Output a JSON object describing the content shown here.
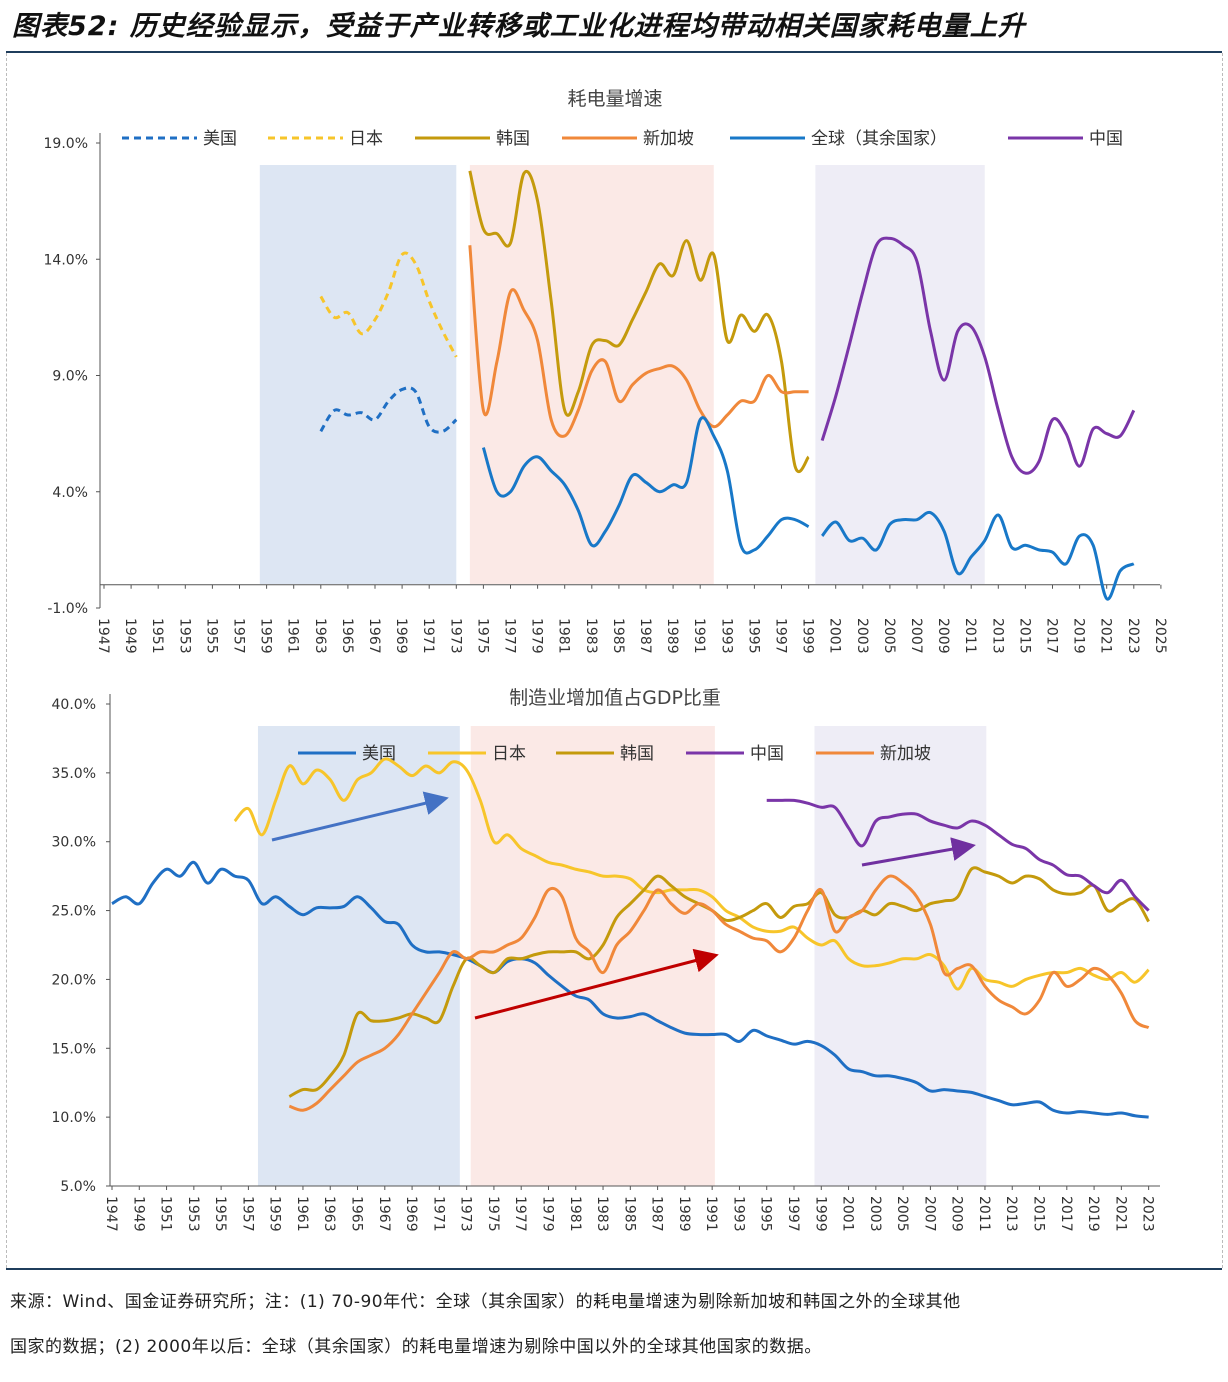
{
  "page_title": "图表52: 历史经验显示，受益于产业转移或工业化进程均带动相关国家耗电量上升",
  "footer": {
    "line1": "来源：Wind、国金证券研究所；注：(1) 70-90年代：全球（其余国家）的耗电量增速为剔除新加坡和韩国之外的全球其他",
    "line2": "国家的数据；(2) 2000年以后：全球（其余国家）的耗电量增速为剔除中国以外的全球其他国家的数据。"
  },
  "colors": {
    "us": "#1f6fc4",
    "japan": "#f7c52a",
    "korea": "#c49a0c",
    "singapore": "#f0883a",
    "global": "#1878c8",
    "china": "#7a35a8",
    "shade_blue": "#dde6f3",
    "shade_pink": "#fbe9e6",
    "shade_lav": "#eeedf6"
  },
  "chart_data": [
    {
      "type": "line",
      "title": "耗电量增速",
      "ylim": [
        -1,
        19
      ],
      "yticks": [
        "-1.0%",
        "4.0%",
        "9.0%",
        "14.0%",
        "19.0%"
      ],
      "ytick_values": [
        -1,
        4,
        9,
        14,
        19
      ],
      "xticks": [
        "1947",
        "1949",
        "1951",
        "1953",
        "1955",
        "1957",
        "1959",
        "1961",
        "1963",
        "1965",
        "1967",
        "1969",
        "1971",
        "1973",
        "1975",
        "1977",
        "1979",
        "1981",
        "1983",
        "1985",
        "1987",
        "1989",
        "1991",
        "1993",
        "1995",
        "1997",
        "1999",
        "2001",
        "2003",
        "2005",
        "2007",
        "2009",
        "2011",
        "2013",
        "2015",
        "2017",
        "2019",
        "2021",
        "2023",
        "2025"
      ],
      "legend_position": "top",
      "shaded_periods": [
        [
          1958.5,
          1973
        ],
        [
          1974,
          1992
        ],
        [
          1999.5,
          2012
        ]
      ],
      "series": [
        {
          "name": "美国",
          "color_key": "us",
          "dashed": true,
          "start": 1963,
          "values": [
            6.6,
            7.5,
            7.3,
            7.4,
            7.1,
            7.9,
            8.4,
            8.3,
            6.8,
            6.6,
            7.1
          ]
        },
        {
          "name": "日本",
          "color_key": "japan",
          "dashed": true,
          "start": 1963,
          "values": [
            12.4,
            11.5,
            11.7,
            10.8,
            11.4,
            12.6,
            14.2,
            13.8,
            12.2,
            10.9,
            9.8
          ]
        },
        {
          "name": "韩国",
          "color_key": "korea",
          "dashed": false,
          "start": 1974,
          "values": [
            17.8,
            15.3,
            15.1,
            14.7,
            17.7,
            16.5,
            12.2,
            7.5,
            8.3,
            10.3,
            10.5,
            10.3,
            11.4,
            12.6,
            13.8,
            13.3,
            14.8,
            13.1,
            14.2,
            10.5,
            11.6,
            10.9,
            11.6,
            9.6,
            5.1,
            5.5
          ]
        },
        {
          "name": "新加坡",
          "color_key": "singapore",
          "dashed": false,
          "start": 1974,
          "values": [
            14.6,
            7.5,
            9.6,
            12.6,
            11.8,
            10.5,
            7.1,
            6.4,
            7.5,
            9.2,
            9.6,
            7.9,
            8.6,
            9.1,
            9.3,
            9.4,
            8.8,
            7.5,
            6.8,
            7.3,
            7.9,
            7.9,
            9.0,
            8.3,
            8.3,
            8.3
          ]
        },
        {
          "name": "全球（其余国家）",
          "color_key": "global",
          "dashed": false,
          "segments": [
            {
              "start": 1975,
              "values": [
                5.9,
                4.0,
                4.0,
                5.1,
                5.5,
                4.9,
                4.3,
                3.2,
                1.7,
                2.3,
                3.4,
                4.7,
                4.4,
                4.0,
                4.3,
                4.4,
                7.1,
                6.4,
                4.9,
                1.7,
                1.5,
                2.1,
                2.8,
                2.8,
                2.5
              ]
            },
            {
              "start": 2000,
              "values": [
                2.1,
                2.7,
                1.9,
                2.0,
                1.5,
                2.6,
                2.8,
                2.8,
                3.1,
                2.3,
                0.5,
                1.2,
                1.9,
                3.0,
                1.6,
                1.7,
                1.5,
                1.4,
                0.9,
                2.1,
                1.7,
                -0.6,
                0.6,
                0.9
              ]
            }
          ]
        },
        {
          "name": "中国",
          "color_key": "china",
          "dashed": false,
          "start": 2000,
          "values": [
            6.2,
            8.1,
            10.3,
            12.6,
            14.6,
            14.9,
            14.6,
            13.9,
            10.9,
            8.8,
            10.9,
            11.1,
            9.8,
            7.5,
            5.5,
            4.8,
            5.3,
            7.1,
            6.5,
            5.1,
            6.7,
            6.5,
            6.4,
            7.5
          ]
        }
      ]
    },
    {
      "type": "line",
      "title": "制造业增加值占GDP比重",
      "ylim": [
        5,
        40
      ],
      "yticks": [
        "5.0%",
        "10.0%",
        "15.0%",
        "20.0%",
        "25.0%",
        "30.0%",
        "35.0%",
        "40.0%"
      ],
      "ytick_values": [
        5,
        10,
        15,
        20,
        25,
        30,
        35,
        40
      ],
      "xticks": [
        "1947",
        "1949",
        "1951",
        "1953",
        "1955",
        "1957",
        "1959",
        "1961",
        "1963",
        "1965",
        "1967",
        "1969",
        "1971",
        "1973",
        "1975",
        "1977",
        "1979",
        "1981",
        "1983",
        "1985",
        "1987",
        "1989",
        "1991",
        "1993",
        "1995",
        "1997",
        "1999",
        "2001",
        "2003",
        "2005",
        "2007",
        "2009",
        "2011",
        "2013",
        "2015",
        "2017",
        "2019",
        "2021",
        "2023"
      ],
      "legend_position": "top",
      "shaded_periods": [
        [
          1957.7,
          1972.5
        ],
        [
          1973.3,
          1991.2
        ],
        [
          1998.5,
          2011.1
        ]
      ],
      "series": [
        {
          "name": "美国",
          "color_key": "us",
          "start": 1947,
          "values": [
            25.5,
            26,
            25.5,
            27,
            28,
            27.5,
            28.5,
            27,
            28,
            27.5,
            27.2,
            25.5,
            26,
            25.3,
            24.7,
            25.2,
            25.2,
            25.3,
            26,
            25.2,
            24.2,
            24,
            22.5,
            22,
            22,
            21.8,
            21.5,
            21,
            20.5,
            21.3,
            21.5,
            21.2,
            20.3,
            19.5,
            18.8,
            18.5,
            17.5,
            17.2,
            17.3,
            17.5,
            17,
            16.5,
            16.1,
            16,
            16,
            16,
            15.5,
            16.3,
            15.9,
            15.6,
            15.3,
            15.5,
            15.2,
            14.5,
            13.5,
            13.3,
            13,
            13,
            12.8,
            12.5,
            11.9,
            12,
            11.9,
            11.8,
            11.5,
            11.2,
            10.9,
            11,
            11.1,
            10.5,
            10.3,
            10.4,
            10.3,
            10.2,
            10.3,
            10.1,
            10.0
          ]
        },
        {
          "name": "日本",
          "color_key": "japan",
          "start": 1956,
          "values": [
            31.5,
            32.4,
            30.5,
            33,
            35.5,
            34.2,
            35.2,
            34.5,
            33,
            34.5,
            35,
            36,
            35.5,
            34.8,
            35.5,
            35,
            35.8,
            35.2,
            33,
            30,
            30.5,
            29.5,
            29,
            28.5,
            28.3,
            28,
            27.8,
            27.5,
            27.5,
            27.3,
            26.5,
            26.3,
            26.5,
            26.5,
            26.5,
            26,
            25,
            24.5,
            23.8,
            23.5,
            23.5,
            23.8,
            23,
            22.5,
            22.8,
            21.5,
            21,
            21,
            21.2,
            21.5,
            21.5,
            21.8,
            21,
            19.3,
            20.8,
            20,
            19.8,
            19.5,
            20,
            20.3,
            20.5,
            20.5,
            20.8,
            20.3,
            20,
            20.5,
            19.8,
            20.7
          ]
        },
        {
          "name": "韩国",
          "color_key": "korea",
          "start": 1960,
          "values": [
            11.5,
            12,
            12,
            13,
            14.5,
            17.5,
            17,
            17,
            17.2,
            17.5,
            17.2,
            17,
            19.5,
            21.5,
            21,
            20.5,
            21.5,
            21.5,
            21.8,
            22,
            22,
            22,
            21.5,
            22.5,
            24.5,
            25.5,
            26.5,
            27.5,
            26.8,
            26,
            25.5,
            25,
            24.3,
            24.5,
            25,
            25.5,
            24.5,
            25.3,
            25.5,
            26.3,
            24.7,
            24.5,
            25,
            24.7,
            25.5,
            25.3,
            25,
            25.5,
            25.7,
            26,
            28,
            27.8,
            27.5,
            27,
            27.5,
            27.3,
            26.5,
            26.2,
            26.3,
            26.8,
            25,
            25.5,
            25.8,
            24.2
          ]
        },
        {
          "name": "中国",
          "color_key": "china",
          "start": 1995,
          "values": [
            33,
            33,
            33,
            32.8,
            32.5,
            32.5,
            31,
            29.7,
            31.5,
            31.8,
            32,
            32,
            31.5,
            31.2,
            31,
            31.5,
            31.2,
            30.5,
            29.8,
            29.5,
            28.7,
            28.3,
            27.6,
            27.5,
            26.8,
            26.3,
            27.2,
            26,
            25
          ]
        },
        {
          "name": "新加坡",
          "color_key": "singapore",
          "start": 1960,
          "values": [
            10.8,
            10.5,
            11,
            12,
            13,
            14,
            14.5,
            15,
            16,
            17.5,
            19,
            20.5,
            22,
            21.5,
            22,
            22,
            22.5,
            23,
            24.5,
            26.5,
            26,
            23,
            22,
            20.5,
            22.5,
            23.5,
            25,
            26.5,
            25.5,
            24.8,
            25.5,
            25,
            24,
            23.5,
            23,
            22.8,
            22,
            23,
            25,
            26.5,
            23.5,
            24.5,
            25,
            26.5,
            27.5,
            27,
            26,
            24,
            20.5,
            20.8,
            21,
            19.5,
            18.5,
            18,
            17.5,
            18.5,
            20.5,
            19.5,
            20,
            20.8,
            20.3,
            19,
            17,
            16.5
          ]
        }
      ]
    }
  ]
}
